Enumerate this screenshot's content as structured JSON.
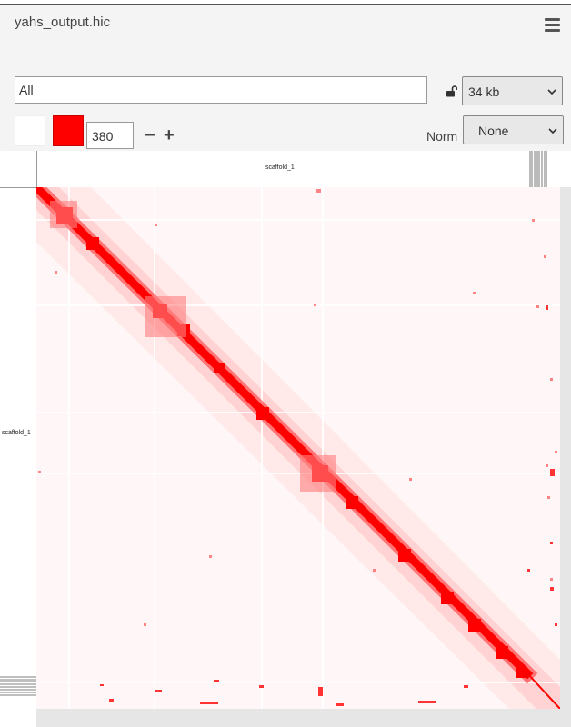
{
  "header": {
    "file_title": "yahs_output.hic",
    "menu_icon": "hamburger-menu-icon"
  },
  "controls": {
    "locus_value": "All",
    "lock_icon": "unlock-icon",
    "resolution": "34 kb",
    "color_low": "#ffffff",
    "color_high": "#ff0000",
    "threshold": "380",
    "minus_label": "−",
    "plus_label": "+",
    "norm_label": "Norm",
    "norm_value": "None"
  },
  "map": {
    "top_axis_label": "scaffold_1",
    "left_axis_label": "scaffold_1",
    "accent_color": "#ff0000"
  }
}
